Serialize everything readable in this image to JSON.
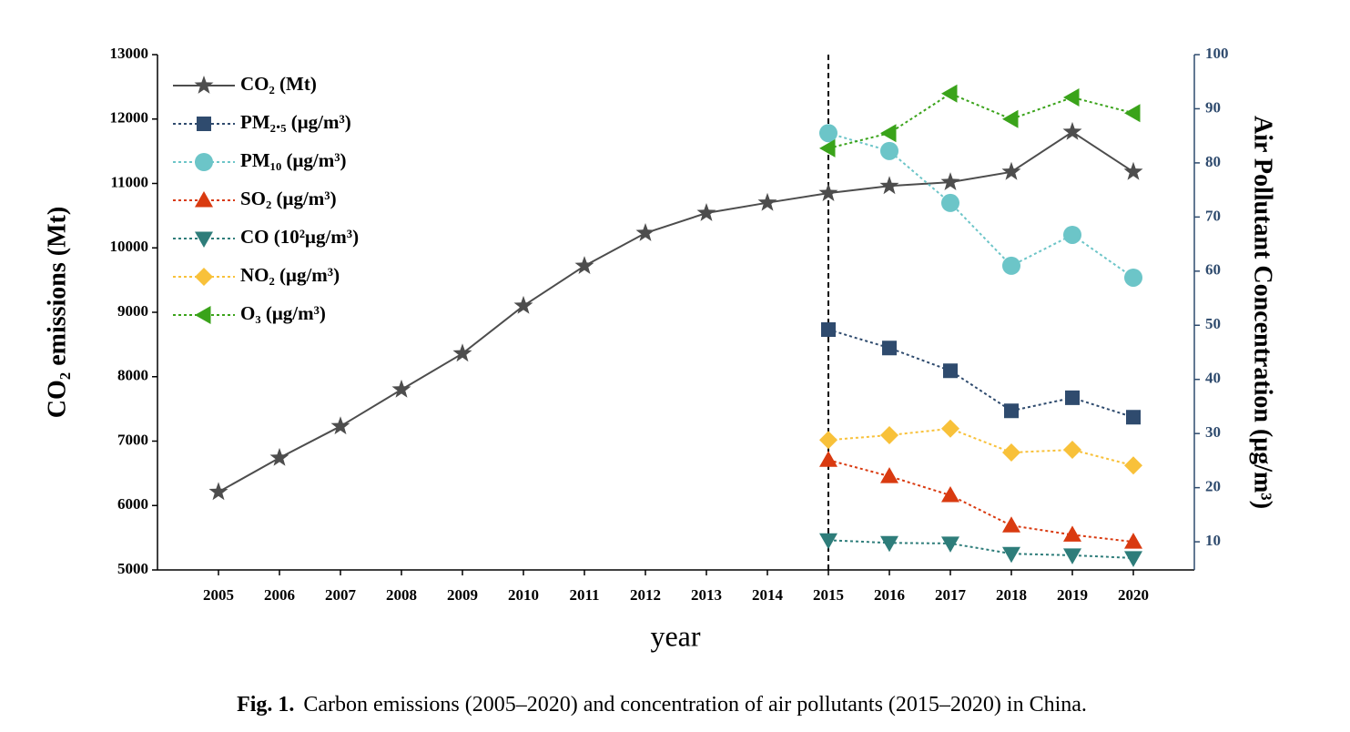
{
  "chart_data": {
    "type": "line",
    "y_label": "CO₂ emissions (Mt)",
    "y2_label": "Air Pollutant Concentration (μg/m³)",
    "x_label": "year",
    "caption_label": "Fig. 1.",
    "caption": "Carbon emissions (2005–2020) and concentration of air pollutants (2015–2020) in China.",
    "categories": [
      "2005",
      "2006",
      "2007",
      "2008",
      "2009",
      "2010",
      "2011",
      "2012",
      "2013",
      "2014",
      "2015",
      "2016",
      "2017",
      "2018",
      "2019",
      "2020"
    ],
    "vline": "2015",
    "ylim": [
      5000,
      13000
    ],
    "yticks": [
      5000,
      6000,
      7000,
      8000,
      9000,
      10000,
      11000,
      12000,
      13000
    ],
    "y2lim": [
      4.8,
      100
    ],
    "y2ticks": [
      10,
      20,
      30,
      40,
      50,
      60,
      70,
      80,
      90,
      100
    ],
    "legend": "upper left",
    "series": [
      {
        "name": "CO₂ (Mt)",
        "color": "#4d4d4d",
        "marker": "star",
        "linestyle": "solid",
        "values": [
          6210,
          6740,
          7230,
          7800,
          8360,
          9100,
          9720,
          10230,
          10540,
          10700,
          10850,
          10960,
          11020,
          11180,
          11800,
          11180
        ]
      },
      {
        "name": "PM₂.₅ (μg/m³)",
        "color": "#2f4b6e",
        "marker": "square",
        "linestyle": "dotted",
        "axis": "y2",
        "values": [
          null,
          null,
          null,
          null,
          null,
          null,
          null,
          null,
          null,
          null,
          49.2,
          45.8,
          41.6,
          34.2,
          36.6,
          33.0
        ]
      },
      {
        "name": "PM₁₀ (μg/m³)",
        "color": "#6cc5c8",
        "marker": "circle",
        "linestyle": "dotted",
        "axis": "y2",
        "values": [
          null,
          null,
          null,
          null,
          null,
          null,
          null,
          null,
          null,
          null,
          85.5,
          82.2,
          72.6,
          61.0,
          66.7,
          58.8
        ]
      },
      {
        "name": "SO₂ (μg/m³)",
        "color": "#d93a10",
        "marker": "triangle-up",
        "linestyle": "dotted",
        "axis": "y2",
        "values": [
          null,
          null,
          null,
          null,
          null,
          null,
          null,
          null,
          null,
          null,
          25.1,
          22.1,
          18.6,
          13.0,
          11.3,
          10.0
        ]
      },
      {
        "name": "CO (10²μg/m³)",
        "color": "#2e7d7a",
        "marker": "triangle-down",
        "linestyle": "dotted",
        "axis": "y2",
        "values": [
          null,
          null,
          null,
          null,
          null,
          null,
          null,
          null,
          null,
          null,
          10.3,
          9.8,
          9.7,
          7.8,
          7.5,
          7.0
        ]
      },
      {
        "name": "NO₂ (μg/m³)",
        "color": "#f8c13a",
        "marker": "diamond",
        "linestyle": "dotted",
        "axis": "y2",
        "values": [
          null,
          null,
          null,
          null,
          null,
          null,
          null,
          null,
          null,
          null,
          28.8,
          29.7,
          30.9,
          26.5,
          27.0,
          24.1
        ]
      },
      {
        "name": "O₃ (μg/m³)",
        "color": "#3aa31a",
        "marker": "triangle-left",
        "linestyle": "dotted",
        "axis": "y2",
        "values": [
          null,
          null,
          null,
          null,
          null,
          null,
          null,
          null,
          null,
          null,
          82.7,
          85.5,
          92.8,
          88.1,
          92.1,
          89.2
        ]
      }
    ]
  }
}
